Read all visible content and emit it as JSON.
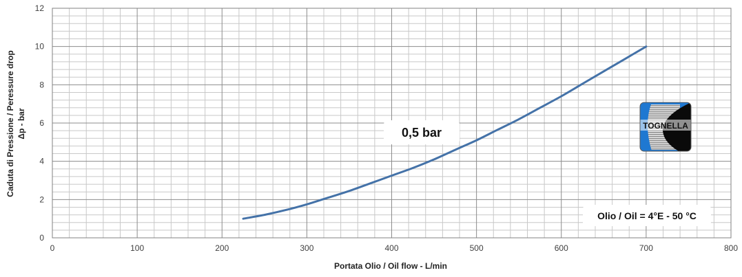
{
  "chart_data": {
    "type": "line",
    "title": "",
    "xlabel": "Portata Olio / Oil flow -  L/min",
    "ylabel_line1": "Caduta di Pressione / Peressure drop",
    "ylabel_line2": "Δp - bar",
    "xlim": [
      0,
      800
    ],
    "ylim": [
      0,
      12
    ],
    "x_ticks": [
      "0",
      "100",
      "200",
      "300",
      "400",
      "500",
      "600",
      "700",
      "800"
    ],
    "y_ticks": [
      "0",
      "2",
      "4",
      "6",
      "8",
      "10",
      "12"
    ],
    "grid": true,
    "series": [
      {
        "name": "0,5 bar",
        "color": "#4472a8",
        "x": [
          225,
          250,
          275,
          300,
          325,
          350,
          375,
          400,
          425,
          450,
          475,
          500,
          525,
          550,
          575,
          600,
          625,
          650,
          675,
          700
        ],
        "y": [
          1.0,
          1.2,
          1.45,
          1.75,
          2.1,
          2.45,
          2.85,
          3.25,
          3.65,
          4.1,
          4.6,
          5.1,
          5.65,
          6.2,
          6.8,
          7.4,
          8.05,
          8.7,
          9.35,
          10.0
        ]
      }
    ],
    "annotations": [
      {
        "text": "0,5 bar"
      },
      {
        "text": "Olio / Oil = 4°E - 50 °C"
      }
    ],
    "logo": {
      "text": "TOGNELLA",
      "colors": [
        "#1f78d1",
        "#000000",
        "#d0d0d0"
      ]
    }
  }
}
